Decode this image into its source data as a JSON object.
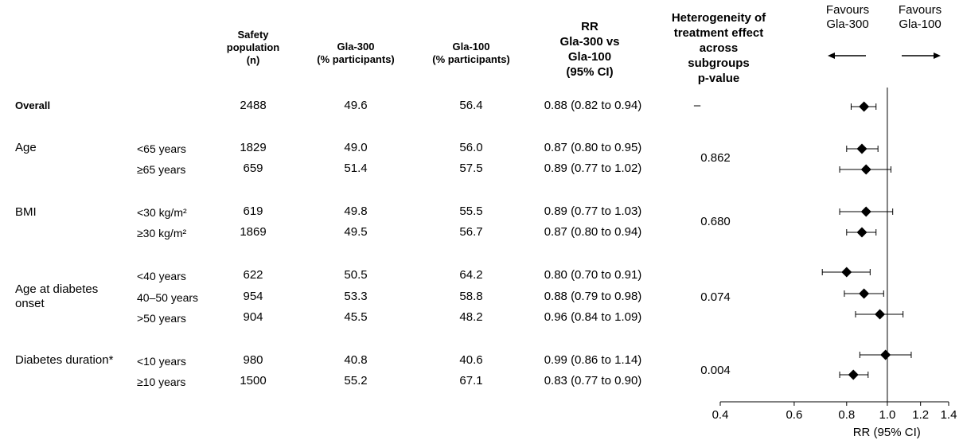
{
  "headers": {
    "n": "Safety\npopulation\n(n)",
    "gla300": "Gla-300\n(% participants)",
    "gla100": "Gla-100\n(% participants)",
    "rr": "RR\nGla-300 vs\nGla-100\n(95% CI)",
    "het": "Heterogeneity of\ntreatment effect\nacross\nsubgroups\np-value",
    "favours_left": "Favours\nGla-300",
    "favours_right": "Favours\nGla-100"
  },
  "rows": [
    {
      "group": "Overall",
      "sub": "",
      "n": "2488",
      "gla300": "49.6",
      "gla100": "56.4",
      "rr_text": "0.88 (0.82 to 0.94)"
    },
    {
      "group": "Age",
      "sub": "<65 years",
      "n": "1829",
      "gla300": "49.0",
      "gla100": "56.0",
      "rr_text": "0.87 (0.80 to 0.95)"
    },
    {
      "group": "",
      "sub": "≥65 years",
      "n": "659",
      "gla300": "51.4",
      "gla100": "57.5",
      "rr_text": "0.89 (0.77 to 1.02)"
    },
    {
      "group": "BMI",
      "sub": "<30 kg/m²",
      "n": "619",
      "gla300": "49.8",
      "gla100": "55.5",
      "rr_text": "0.89 (0.77 to 1.03)"
    },
    {
      "group": "",
      "sub": "≥30 kg/m²",
      "n": "1869",
      "gla300": "49.5",
      "gla100": "56.7",
      "rr_text": "0.87 (0.80 to 0.94)"
    },
    {
      "group": "",
      "sub": "<40 years",
      "n": "622",
      "gla300": "50.5",
      "gla100": "64.2",
      "rr_text": "0.80 (0.70 to 0.91)"
    },
    {
      "group": "",
      "sub": "40–50 years",
      "n": "954",
      "gla300": "53.3",
      "gla100": "58.8",
      "rr_text": "0.88 (0.79 to 0.98)"
    },
    {
      "group": "",
      "sub": ">50 years",
      "n": "904",
      "gla300": "45.5",
      "gla100": "48.2",
      "rr_text": "0.96 (0.84 to 1.09)"
    },
    {
      "group": "Diabetes duration*",
      "sub": "<10 years",
      "n": "980",
      "gla300": "40.8",
      "gla100": "40.6",
      "rr_text": "0.99 (0.86 to 1.14)"
    },
    {
      "group": "",
      "sub": "≥10 years",
      "n": "1500",
      "gla300": "55.2",
      "gla100": "67.1",
      "rr_text": "0.83 (0.77 to 0.90)"
    }
  ],
  "age_onset_label": "Age at diabetes\nonset",
  "heterogeneity": {
    "overall": "–",
    "age": "0.862",
    "bmi": "0.680",
    "age_onset": "0.074",
    "duration": "0.004"
  },
  "chart_data": {
    "type": "scatter",
    "subtype": "forest",
    "x_scale": "log",
    "xlim": [
      0.4,
      1.4
    ],
    "xticks": [
      0.4,
      0.6,
      0.8,
      1.0,
      1.2,
      1.4
    ],
    "xtick_labels": [
      "0.4",
      "0.6",
      "0.8",
      "1.0",
      "1.2",
      "1.4"
    ],
    "xlabel": "RR (95% CI)",
    "reference_line": 1.0,
    "points": [
      {
        "rr": 0.88,
        "lo": 0.82,
        "hi": 0.94
      },
      {
        "rr": 0.87,
        "lo": 0.8,
        "hi": 0.95
      },
      {
        "rr": 0.89,
        "lo": 0.77,
        "hi": 1.02
      },
      {
        "rr": 0.89,
        "lo": 0.77,
        "hi": 1.03
      },
      {
        "rr": 0.87,
        "lo": 0.8,
        "hi": 0.94
      },
      {
        "rr": 0.8,
        "lo": 0.7,
        "hi": 0.91
      },
      {
        "rr": 0.88,
        "lo": 0.79,
        "hi": 0.98
      },
      {
        "rr": 0.96,
        "lo": 0.84,
        "hi": 1.09
      },
      {
        "rr": 0.99,
        "lo": 0.86,
        "hi": 1.14
      },
      {
        "rr": 0.83,
        "lo": 0.77,
        "hi": 0.9
      }
    ],
    "marker_color": "#000000"
  }
}
